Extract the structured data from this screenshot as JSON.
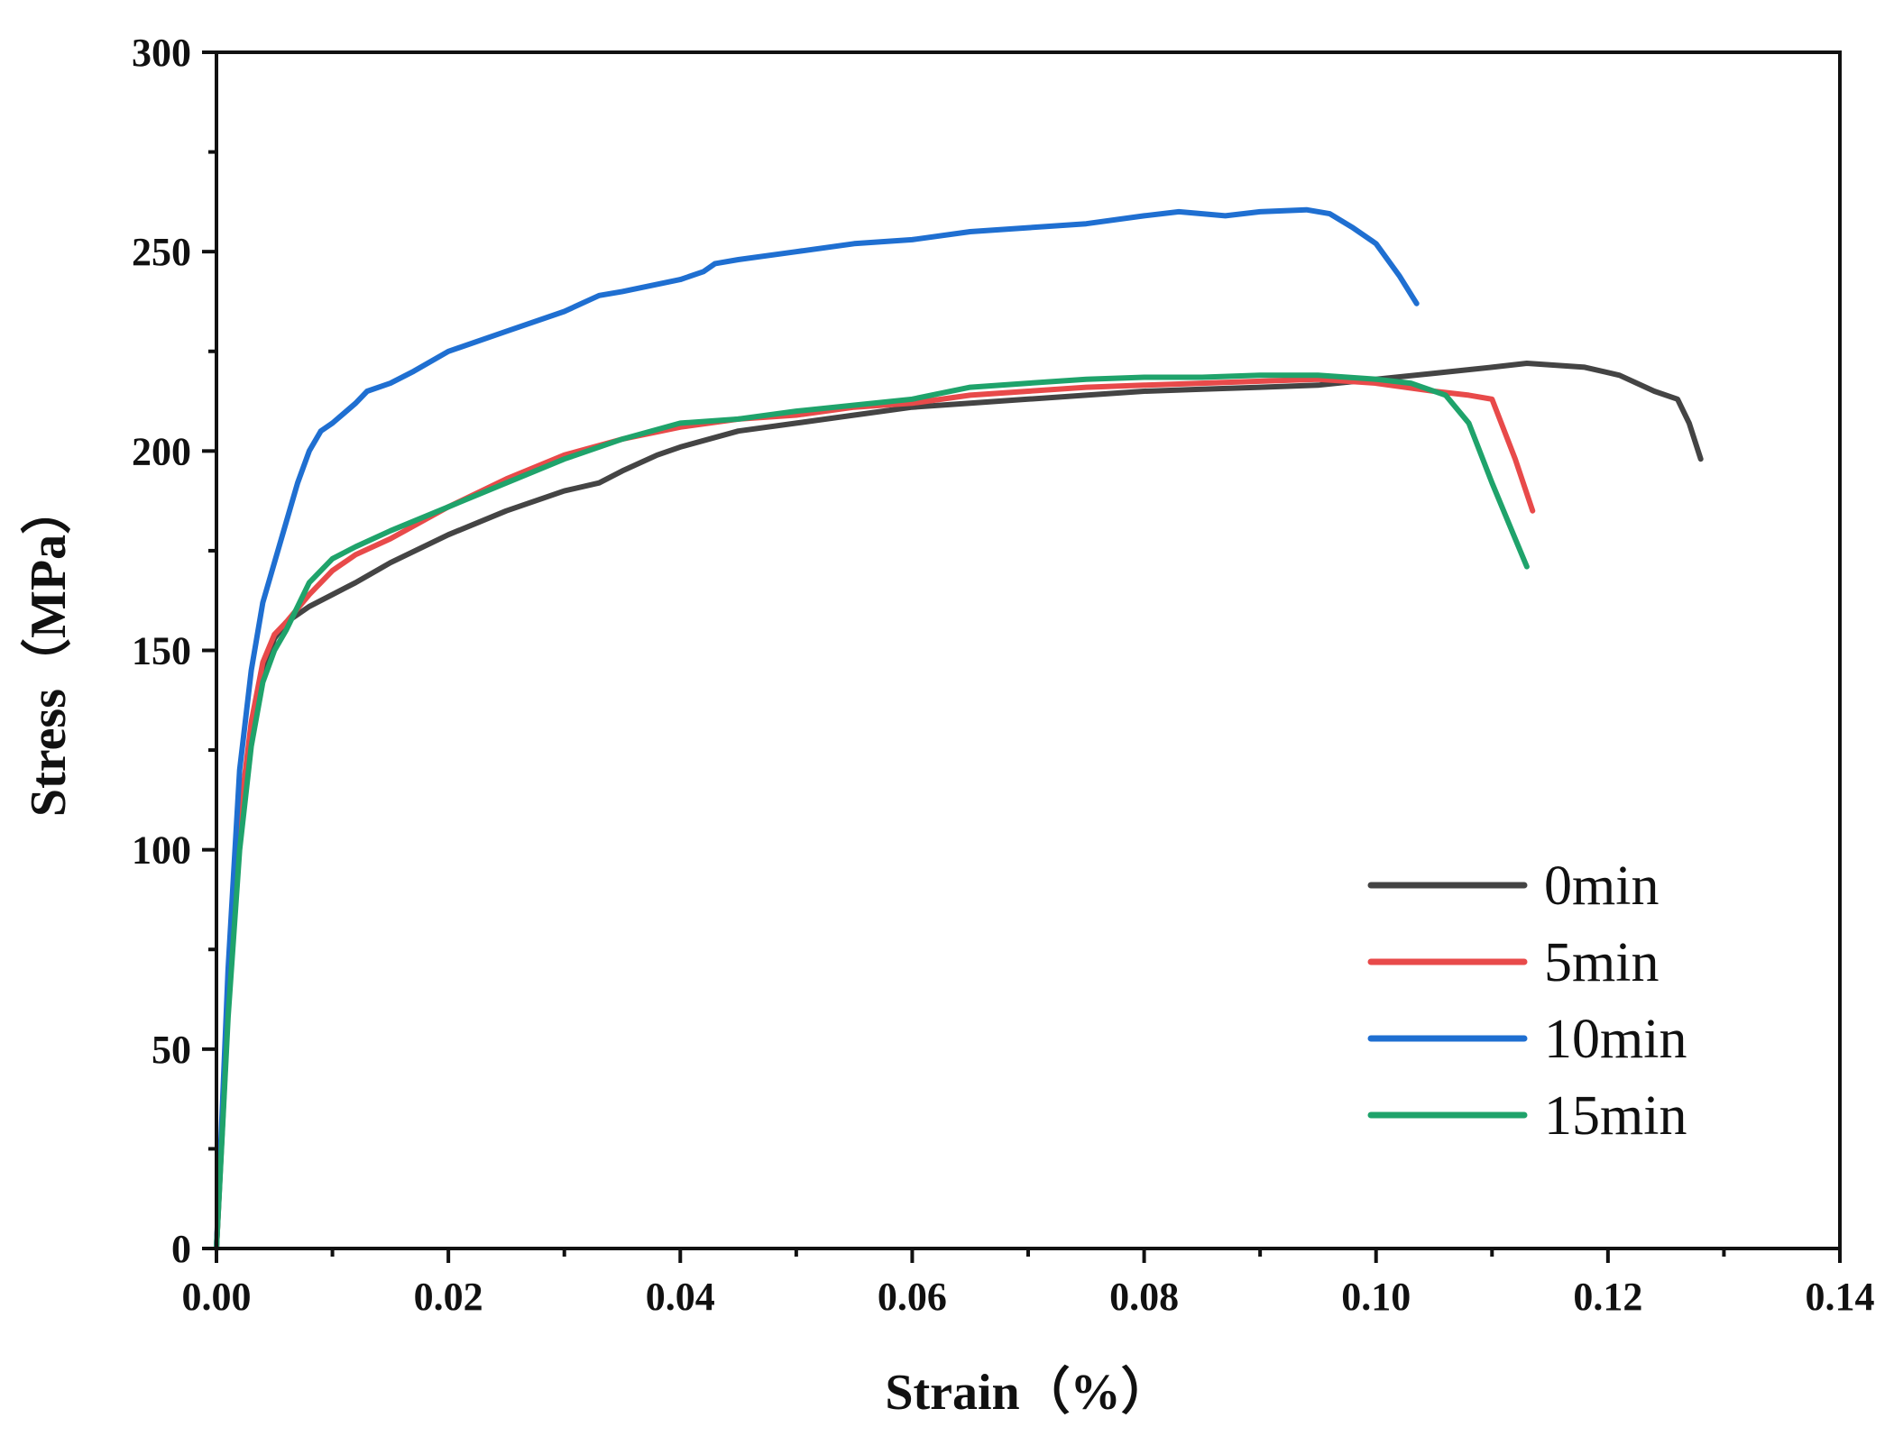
{
  "chart_data": {
    "type": "line",
    "title": "",
    "xlabel": "Strain（%）",
    "ylabel": "Stress（MPa）",
    "xlim": [
      0,
      0.14
    ],
    "ylim": [
      0,
      300
    ],
    "x_ticks": [
      "0.00",
      "0.02",
      "0.04",
      "0.06",
      "0.08",
      "0.10",
      "0.12",
      "0.14"
    ],
    "y_ticks": [
      "0",
      "50",
      "100",
      "150",
      "200",
      "250",
      "300"
    ],
    "grid": false,
    "legend_position": "bottom-right",
    "series": [
      {
        "name": "0min",
        "color": "#444444",
        "points": [
          [
            0,
            0
          ],
          [
            0.001,
            60
          ],
          [
            0.002,
            105
          ],
          [
            0.003,
            130
          ],
          [
            0.004,
            145
          ],
          [
            0.005,
            153
          ],
          [
            0.006,
            157
          ],
          [
            0.008,
            161
          ],
          [
            0.01,
            164
          ],
          [
            0.012,
            167
          ],
          [
            0.015,
            172
          ],
          [
            0.02,
            179
          ],
          [
            0.025,
            185
          ],
          [
            0.03,
            190
          ],
          [
            0.033,
            192
          ],
          [
            0.035,
            195
          ],
          [
            0.038,
            199
          ],
          [
            0.04,
            201
          ],
          [
            0.045,
            205
          ],
          [
            0.05,
            207
          ],
          [
            0.055,
            209
          ],
          [
            0.06,
            211
          ],
          [
            0.065,
            212
          ],
          [
            0.07,
            213
          ],
          [
            0.075,
            214
          ],
          [
            0.08,
            215
          ],
          [
            0.085,
            215.5
          ],
          [
            0.09,
            216
          ],
          [
            0.095,
            216.5
          ],
          [
            0.1,
            218
          ],
          [
            0.105,
            219.5
          ],
          [
            0.11,
            221
          ],
          [
            0.113,
            222
          ],
          [
            0.118,
            221
          ],
          [
            0.121,
            219
          ],
          [
            0.124,
            215
          ],
          [
            0.126,
            213
          ],
          [
            0.127,
            207
          ],
          [
            0.128,
            198
          ]
        ]
      },
      {
        "name": "5min",
        "color": "#e84a4a",
        "points": [
          [
            0,
            0
          ],
          [
            0.001,
            62
          ],
          [
            0.002,
            108
          ],
          [
            0.003,
            132
          ],
          [
            0.004,
            147
          ],
          [
            0.005,
            154
          ],
          [
            0.006,
            157
          ],
          [
            0.008,
            164
          ],
          [
            0.01,
            170
          ],
          [
            0.012,
            174
          ],
          [
            0.015,
            178
          ],
          [
            0.02,
            186
          ],
          [
            0.025,
            193
          ],
          [
            0.03,
            199
          ],
          [
            0.035,
            203
          ],
          [
            0.04,
            206
          ],
          [
            0.045,
            208
          ],
          [
            0.05,
            209
          ],
          [
            0.055,
            211
          ],
          [
            0.06,
            212
          ],
          [
            0.065,
            214
          ],
          [
            0.07,
            215
          ],
          [
            0.075,
            216
          ],
          [
            0.08,
            216.5
          ],
          [
            0.085,
            217
          ],
          [
            0.09,
            217.5
          ],
          [
            0.095,
            218
          ],
          [
            0.1,
            217
          ],
          [
            0.105,
            215
          ],
          [
            0.108,
            214
          ],
          [
            0.11,
            213
          ],
          [
            0.112,
            198
          ],
          [
            0.1135,
            185
          ]
        ]
      },
      {
        "name": "10min",
        "color": "#1f6fd1",
        "points": [
          [
            0,
            0
          ],
          [
            0.001,
            70
          ],
          [
            0.002,
            120
          ],
          [
            0.003,
            145
          ],
          [
            0.004,
            162
          ],
          [
            0.006,
            182
          ],
          [
            0.007,
            192
          ],
          [
            0.008,
            200
          ],
          [
            0.009,
            205
          ],
          [
            0.01,
            207
          ],
          [
            0.012,
            212
          ],
          [
            0.013,
            215
          ],
          [
            0.015,
            217
          ],
          [
            0.017,
            220
          ],
          [
            0.02,
            225
          ],
          [
            0.025,
            230
          ],
          [
            0.03,
            235
          ],
          [
            0.033,
            239
          ],
          [
            0.035,
            240
          ],
          [
            0.04,
            243
          ],
          [
            0.042,
            245
          ],
          [
            0.043,
            247
          ],
          [
            0.045,
            248
          ],
          [
            0.05,
            250
          ],
          [
            0.055,
            252
          ],
          [
            0.06,
            253
          ],
          [
            0.065,
            255
          ],
          [
            0.07,
            256
          ],
          [
            0.075,
            257
          ],
          [
            0.08,
            259
          ],
          [
            0.083,
            260
          ],
          [
            0.085,
            259.5
          ],
          [
            0.087,
            259
          ],
          [
            0.09,
            260
          ],
          [
            0.094,
            260.5
          ],
          [
            0.096,
            259.5
          ],
          [
            0.098,
            256
          ],
          [
            0.1,
            252
          ],
          [
            0.102,
            244
          ],
          [
            0.1035,
            237
          ]
        ]
      },
      {
        "name": "15min",
        "color": "#1fa36b",
        "points": [
          [
            0,
            0
          ],
          [
            0.001,
            58
          ],
          [
            0.002,
            100
          ],
          [
            0.003,
            126
          ],
          [
            0.004,
            142
          ],
          [
            0.005,
            150
          ],
          [
            0.006,
            155
          ],
          [
            0.008,
            167
          ],
          [
            0.01,
            173
          ],
          [
            0.012,
            176
          ],
          [
            0.015,
            180
          ],
          [
            0.02,
            186
          ],
          [
            0.025,
            192
          ],
          [
            0.03,
            198
          ],
          [
            0.035,
            203
          ],
          [
            0.04,
            207
          ],
          [
            0.045,
            208
          ],
          [
            0.05,
            210
          ],
          [
            0.055,
            211.5
          ],
          [
            0.06,
            213
          ],
          [
            0.065,
            216
          ],
          [
            0.07,
            217
          ],
          [
            0.075,
            218
          ],
          [
            0.08,
            218.5
          ],
          [
            0.085,
            218.5
          ],
          [
            0.09,
            219
          ],
          [
            0.095,
            219
          ],
          [
            0.1,
            218
          ],
          [
            0.103,
            217
          ],
          [
            0.106,
            214
          ],
          [
            0.108,
            207
          ],
          [
            0.11,
            192
          ],
          [
            0.112,
            178
          ],
          [
            0.113,
            171
          ]
        ]
      }
    ]
  }
}
